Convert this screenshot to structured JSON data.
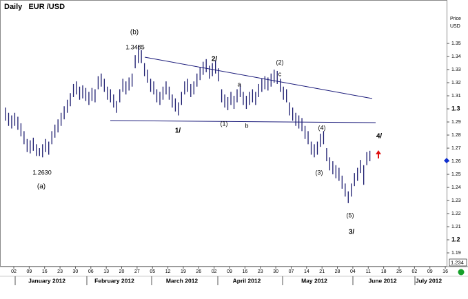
{
  "chart_data": {
    "type": "ohlc",
    "title": "Daily   EUR /USD",
    "y_axis_label": [
      "Price",
      "USD"
    ],
    "color": "#1a1a6e",
    "high": [
      1.301,
      1.297,
      1.295,
      1.297,
      1.294,
      1.289,
      1.283,
      1.277,
      1.276,
      1.278,
      1.273,
      1.27,
      1.273,
      1.277,
      1.275,
      1.283,
      1.288,
      1.292,
      1.297,
      1.302,
      1.307,
      1.312,
      1.319,
      1.321,
      1.317,
      1.318,
      1.316,
      1.313,
      1.316,
      1.315,
      1.325,
      1.327,
      1.323,
      1.317,
      1.315,
      1.311,
      1.306,
      1.315,
      1.323,
      1.321,
      1.324,
      1.327,
      1.341,
      1.3485,
      1.345,
      1.335,
      1.33,
      1.323,
      1.321,
      1.315,
      1.313,
      1.317,
      1.321,
      1.317,
      1.311,
      1.308,
      1.305,
      1.313,
      1.321,
      1.323,
      1.319,
      1.321,
      1.327,
      1.332,
      1.336,
      1.338,
      1.333,
      1.335,
      1.337,
      1.331,
      1.315,
      1.311,
      1.309,
      1.313,
      1.31,
      1.315,
      1.319,
      1.313,
      1.31,
      1.313,
      1.315,
      1.313,
      1.319,
      1.323,
      1.325,
      1.324,
      1.327,
      1.33,
      1.329,
      1.323,
      1.317,
      1.315,
      1.305,
      1.301,
      1.297,
      1.295,
      1.293,
      1.287,
      1.283,
      1.275,
      1.273,
      1.275,
      1.281,
      1.283,
      1.27,
      1.263,
      1.26,
      1.257,
      1.255,
      1.249,
      1.243,
      1.237,
      1.243,
      1.251,
      1.255,
      1.261,
      1.257,
      1.267,
      1.268
    ],
    "low": [
      1.291,
      1.287,
      1.285,
      1.287,
      1.284,
      1.279,
      1.273,
      1.267,
      1.266,
      1.268,
      1.264,
      1.264,
      1.263,
      1.267,
      1.265,
      1.273,
      1.278,
      1.282,
      1.287,
      1.292,
      1.297,
      1.302,
      1.309,
      1.311,
      1.307,
      1.308,
      1.306,
      1.303,
      1.306,
      1.305,
      1.315,
      1.317,
      1.313,
      1.307,
      1.305,
      1.301,
      1.297,
      1.305,
      1.313,
      1.311,
      1.314,
      1.317,
      1.331,
      1.335,
      1.335,
      1.325,
      1.32,
      1.313,
      1.311,
      1.305,
      1.303,
      1.307,
      1.311,
      1.307,
      1.301,
      1.298,
      1.295,
      1.303,
      1.311,
      1.313,
      1.309,
      1.311,
      1.317,
      1.322,
      1.326,
      1.328,
      1.323,
      1.325,
      1.327,
      1.321,
      1.305,
      1.301,
      1.299,
      1.303,
      1.3,
      1.305,
      1.309,
      1.303,
      1.3,
      1.303,
      1.305,
      1.303,
      1.309,
      1.313,
      1.315,
      1.314,
      1.317,
      1.32,
      1.319,
      1.313,
      1.307,
      1.305,
      1.295,
      1.291,
      1.287,
      1.285,
      1.283,
      1.277,
      1.273,
      1.265,
      1.263,
      1.265,
      1.271,
      1.273,
      1.26,
      1.253,
      1.25,
      1.247,
      1.245,
      1.239,
      1.233,
      1.228,
      1.233,
      1.241,
      1.245,
      1.251,
      1.242,
      1.257,
      1.26
    ],
    "trendlines": [
      [
        1.3395,
        1.3079
      ],
      [
        1.2911,
        1.2895
      ]
    ],
    "last_price": 1.2605,
    "cursor_label": "1.234",
    "ylim": [
      1.1795,
      1.3737
    ],
    "yticks": [
      1.19,
      1.2,
      1.21,
      1.22,
      1.23,
      1.24,
      1.25,
      1.26,
      1.27,
      1.28,
      1.29,
      1.3,
      1.31,
      1.32,
      1.33,
      1.34,
      1.35
    ],
    "bold_yticks": [
      1.2,
      1.3
    ],
    "week_labels": [
      "02",
      "09",
      "16",
      "23",
      "30",
      "06",
      "13",
      "20",
      "27",
      "05",
      "12",
      "19",
      "26",
      "02",
      "09",
      "16",
      "23",
      "30",
      "07",
      "14",
      "21",
      "28",
      "04",
      "11",
      "18",
      "25",
      "02",
      "09",
      "16"
    ],
    "months": [
      "January 2012",
      "February 2012",
      "March 2012",
      "April 2012",
      "May 2012",
      "June 2012",
      "July 2012"
    ],
    "annotations": [
      "(b)",
      "1.3485",
      "2/",
      "(2)",
      "c",
      "a",
      "1/",
      "(1)",
      "b",
      "(4)",
      "4/",
      "(3)",
      "(5)",
      "3/",
      "1.2630",
      "(a)"
    ]
  }
}
